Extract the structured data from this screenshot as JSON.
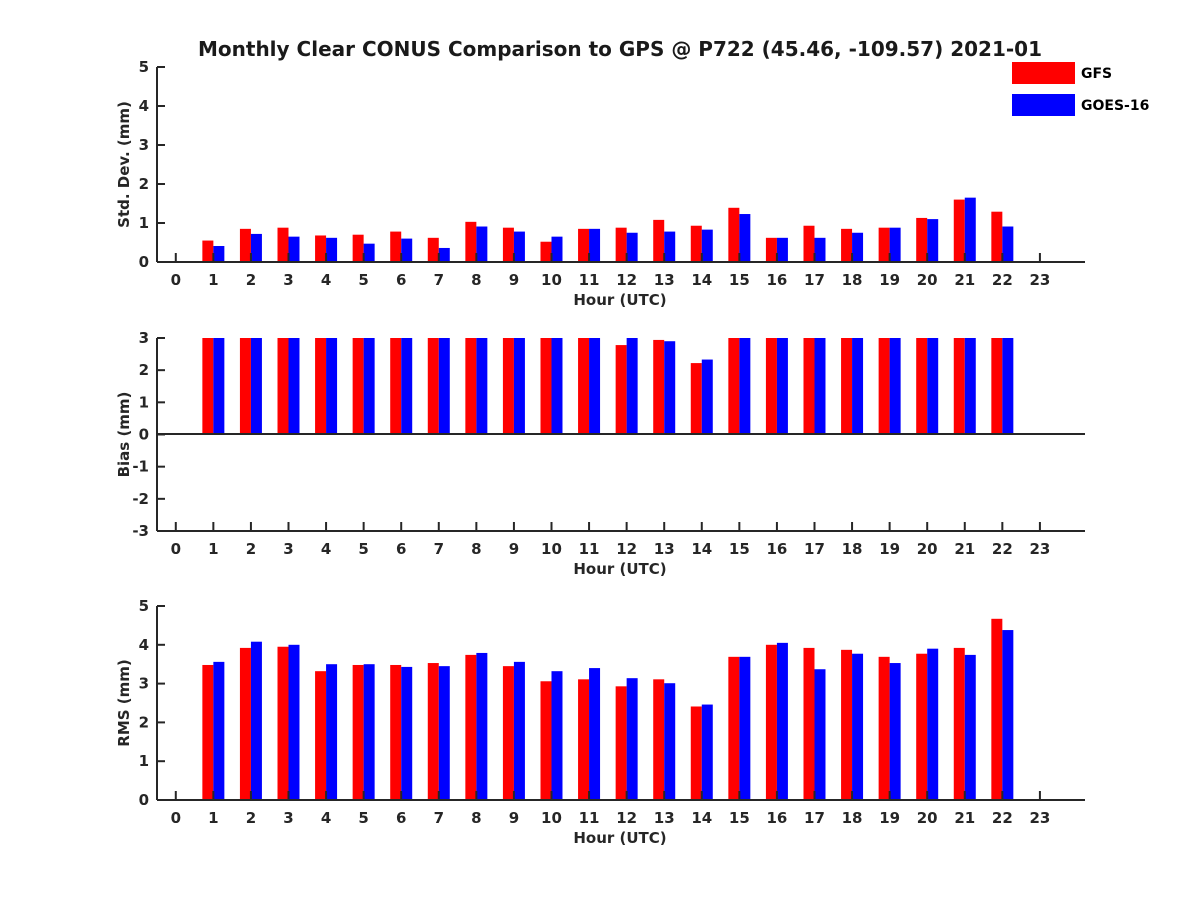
{
  "colors": {
    "GFS": "#ff0000",
    "GOES-16": "#0000ff"
  },
  "chart_data": [
    {
      "type": "bar",
      "title": "Monthly Clear CONUS Comparison to GPS @ P722 (45.46, -109.57) 2021-01",
      "xlabel": "Hour (UTC)",
      "ylabel": "Std. Dev. (mm)",
      "ylim": [
        0,
        5
      ],
      "yticks": [
        "0",
        "1",
        "2",
        "3",
        "4",
        "5"
      ],
      "categories": [
        "0",
        "1",
        "2",
        "3",
        "4",
        "5",
        "6",
        "7",
        "8",
        "9",
        "10",
        "11",
        "12",
        "13",
        "14",
        "15",
        "16",
        "17",
        "18",
        "19",
        "20",
        "21",
        "22",
        "23"
      ],
      "legend": {
        "placement": "top-right",
        "entries": [
          "GFS",
          "GOES-16"
        ]
      },
      "series": [
        {
          "name": "GFS",
          "values": [
            null,
            0.55,
            0.85,
            0.88,
            0.68,
            0.7,
            0.78,
            0.62,
            1.03,
            0.88,
            0.52,
            0.85,
            0.88,
            1.08,
            0.93,
            1.39,
            0.62,
            0.93,
            0.85,
            0.88,
            1.13,
            1.6,
            1.29,
            null
          ]
        },
        {
          "name": "GOES-16",
          "values": [
            null,
            0.41,
            0.72,
            0.65,
            0.62,
            0.47,
            0.6,
            0.36,
            0.91,
            0.78,
            0.65,
            0.85,
            0.75,
            0.78,
            0.83,
            1.23,
            0.62,
            0.62,
            0.75,
            0.88,
            1.1,
            1.65,
            0.91,
            null
          ]
        }
      ]
    },
    {
      "type": "bar",
      "title": "",
      "xlabel": "Hour (UTC)",
      "ylabel": "Bias (mm)",
      "ylim": [
        -3,
        3
      ],
      "yticks": [
        "-3",
        "-2",
        "-1",
        "0",
        "1",
        "2",
        "3"
      ],
      "categories": [
        "0",
        "1",
        "2",
        "3",
        "4",
        "5",
        "6",
        "7",
        "8",
        "9",
        "10",
        "11",
        "12",
        "13",
        "14",
        "15",
        "16",
        "17",
        "18",
        "19",
        "20",
        "21",
        "22",
        "23"
      ],
      "series": [
        {
          "name": "GFS",
          "values": [
            null,
            3,
            3,
            3,
            3,
            3,
            3,
            3,
            3,
            3,
            3,
            3,
            2.78,
            2.94,
            2.22,
            3,
            3,
            3,
            3,
            3,
            3,
            3,
            3,
            null
          ]
        },
        {
          "name": "GOES-16",
          "values": [
            null,
            3,
            3,
            3,
            3,
            3,
            3,
            3,
            3,
            3,
            3,
            3,
            3,
            2.9,
            2.33,
            3,
            3,
            3,
            3,
            3,
            3,
            3,
            3,
            null
          ]
        }
      ]
    },
    {
      "type": "bar",
      "title": "",
      "xlabel": "Hour (UTC)",
      "ylabel": "RMS (mm)",
      "ylim": [
        0,
        5
      ],
      "yticks": [
        "0",
        "1",
        "2",
        "3",
        "4",
        "5"
      ],
      "categories": [
        "0",
        "1",
        "2",
        "3",
        "4",
        "5",
        "6",
        "7",
        "8",
        "9",
        "10",
        "11",
        "12",
        "13",
        "14",
        "15",
        "16",
        "17",
        "18",
        "19",
        "20",
        "21",
        "22",
        "23"
      ],
      "series": [
        {
          "name": "GFS",
          "values": [
            null,
            3.48,
            3.92,
            3.95,
            3.32,
            3.48,
            3.48,
            3.53,
            3.74,
            3.45,
            3.06,
            3.11,
            2.93,
            3.11,
            2.41,
            3.69,
            4.0,
            3.92,
            3.87,
            3.69,
            3.77,
            3.92,
            4.67,
            null
          ]
        },
        {
          "name": "GOES-16",
          "values": [
            null,
            3.56,
            4.08,
            4.0,
            3.5,
            3.5,
            3.43,
            3.45,
            3.79,
            3.56,
            3.32,
            3.4,
            3.14,
            3.01,
            2.46,
            3.69,
            4.05,
            3.37,
            3.77,
            3.53,
            3.9,
            3.74,
            4.38,
            null
          ]
        }
      ]
    }
  ]
}
